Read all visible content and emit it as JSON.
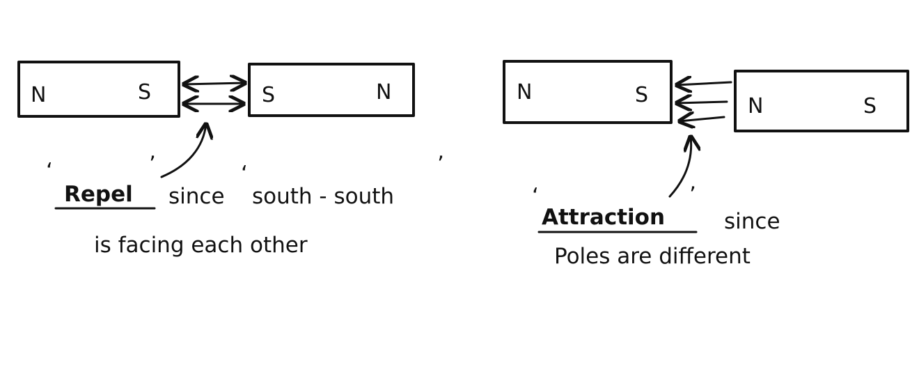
{
  "repel": {
    "magnet_left": {
      "pole_left": "N",
      "pole_right": "S"
    },
    "magnet_right": {
      "pole_left": "S",
      "pole_right": "N"
    },
    "caption_keyword": "Repel",
    "caption_line1_rest": "since",
    "caption_line1_quote": "south - south",
    "caption_line2": "is facing each other"
  },
  "attraction": {
    "magnet_left": {
      "pole_left": "N",
      "pole_right": "S"
    },
    "magnet_right": {
      "pole_left": "N",
      "pole_right": "S"
    },
    "caption_keyword": "Attraction",
    "caption_line1_rest": "since",
    "caption_line2": "Poles are different"
  }
}
